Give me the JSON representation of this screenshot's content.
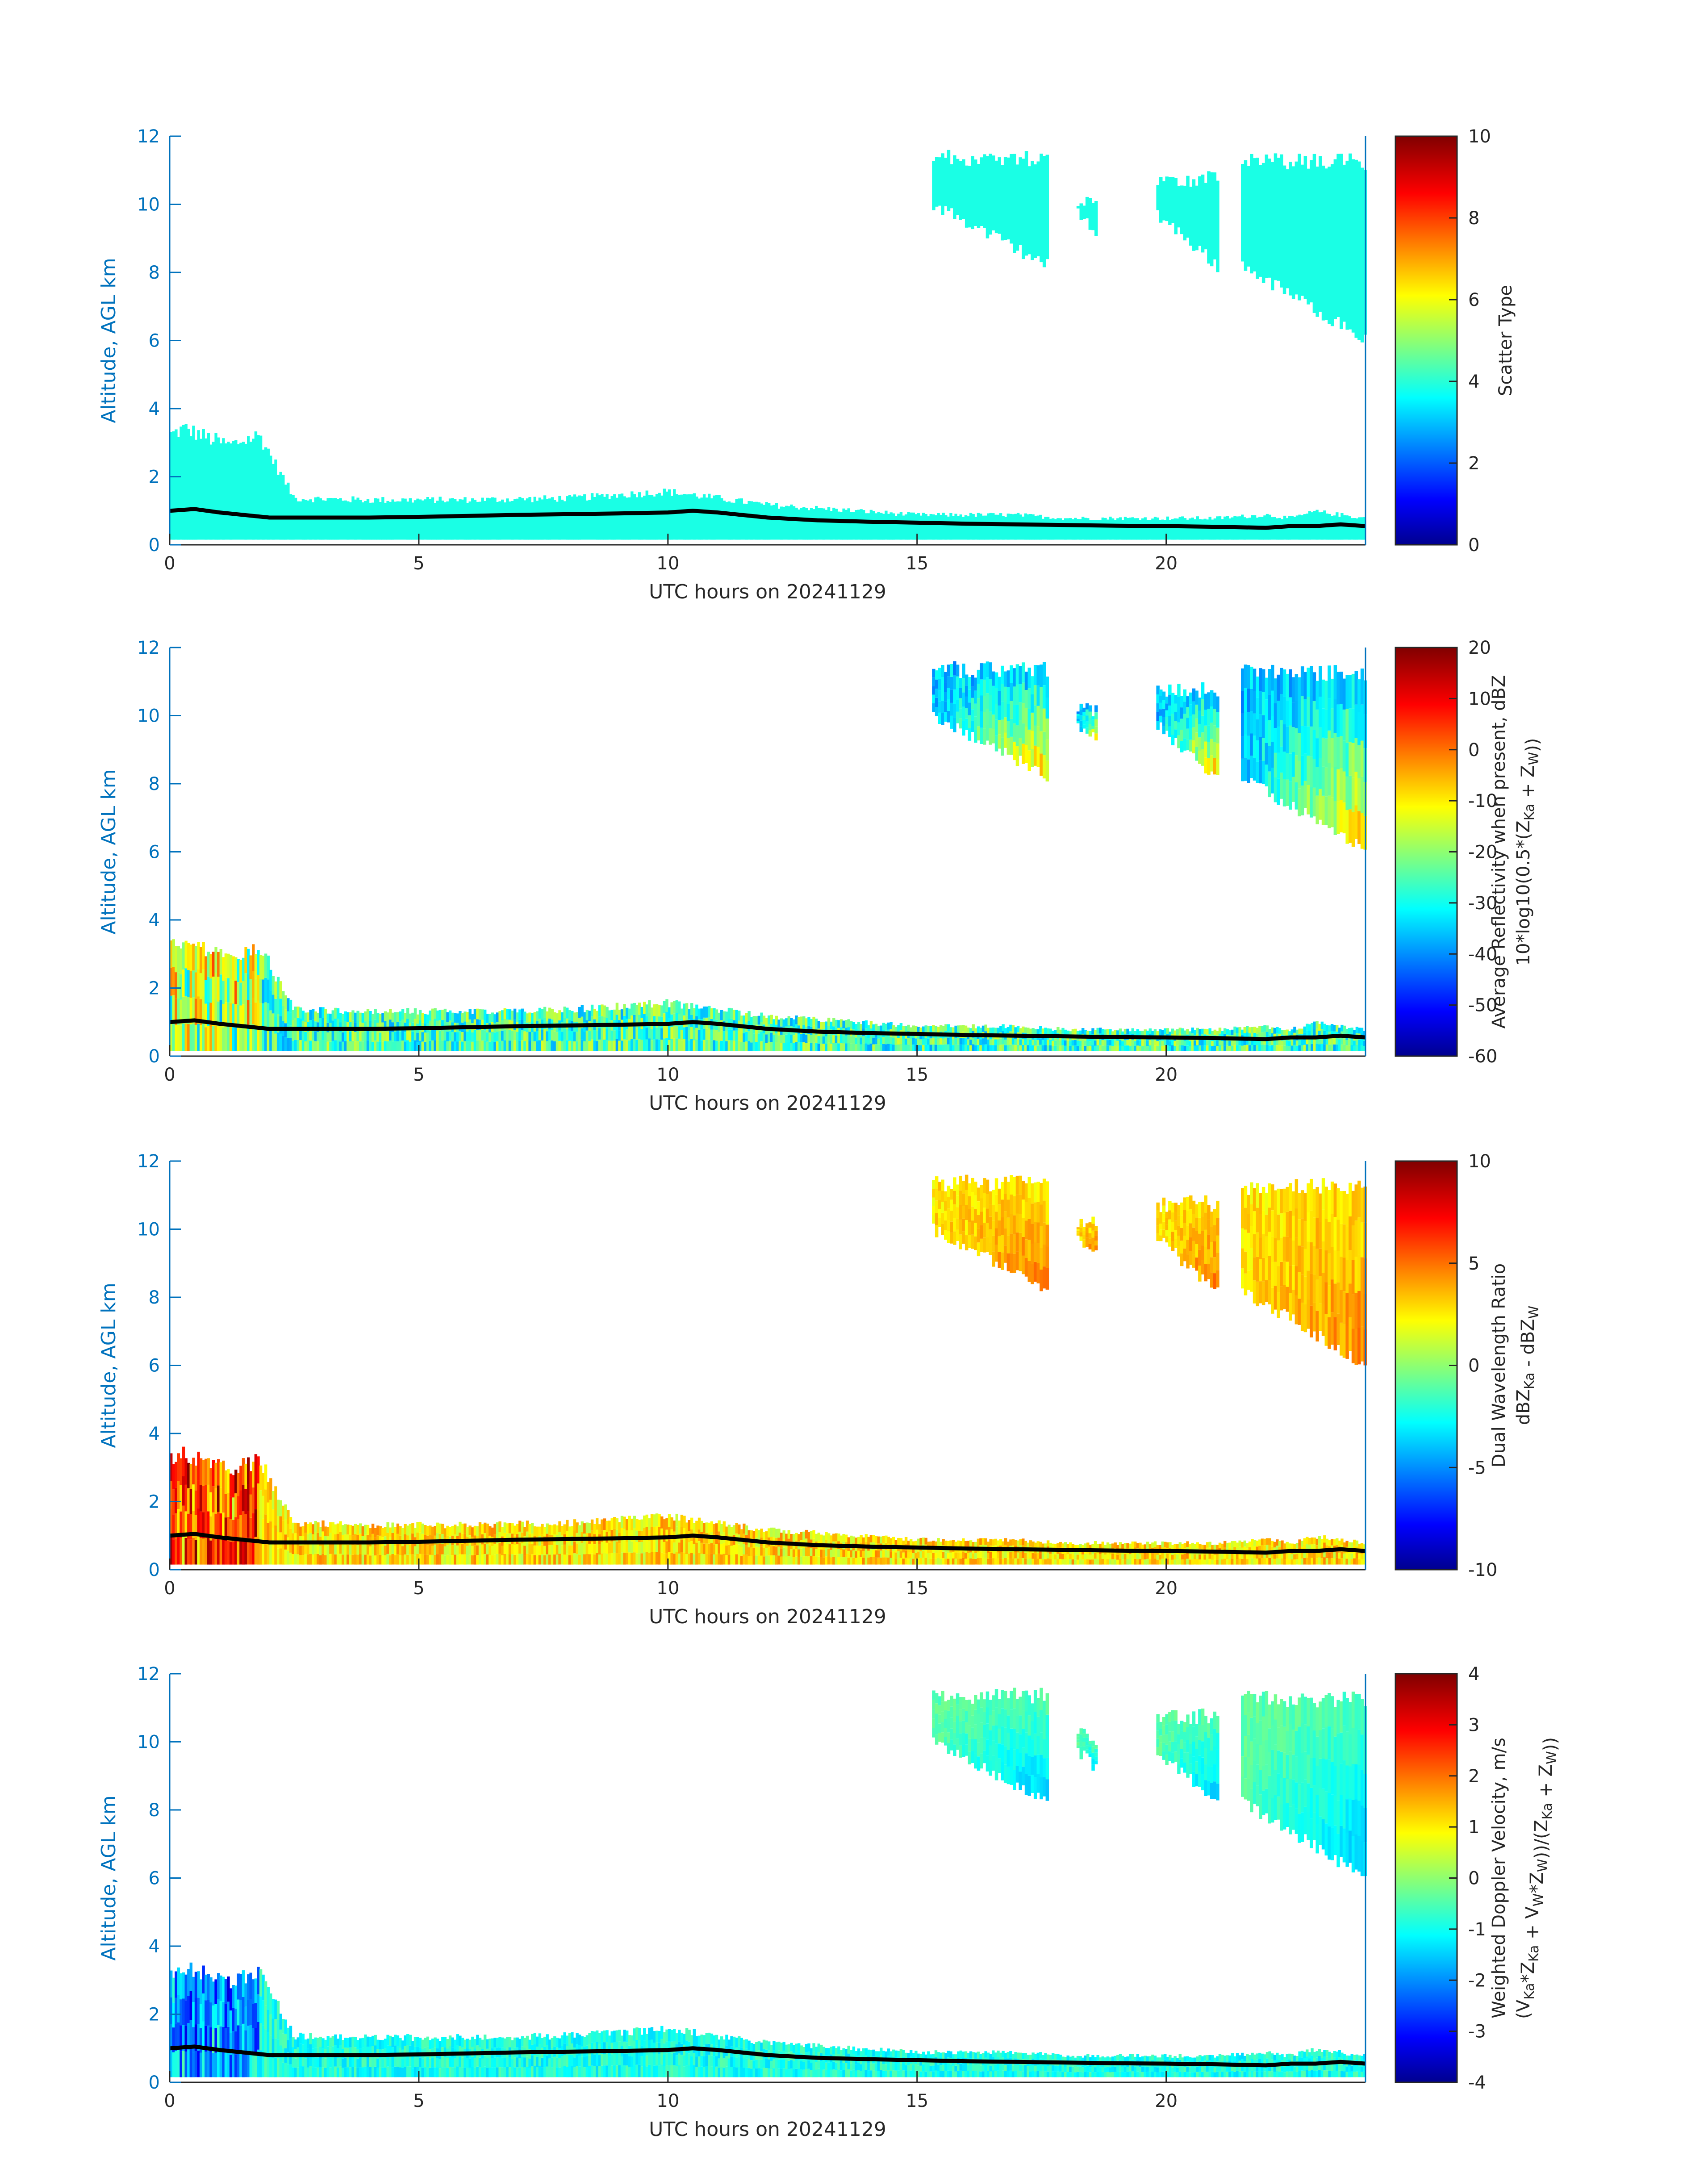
{
  "figure": {
    "x_axis_color": "#262626",
    "y_axis_color": "#0072BD"
  },
  "chart_data": [
    {
      "type": "heatmap",
      "xlabel": "UTC hours on 20241129",
      "ylabel": "Altitude, AGL km",
      "colorbar_label": [
        "Scatter Type"
      ],
      "xlim": [
        0,
        24
      ],
      "ylim": [
        0,
        12
      ],
      "clim": [
        0,
        10
      ],
      "x_ticks": [
        "0",
        "5",
        "10",
        "15",
        "20"
      ],
      "y_ticks": [
        "0",
        "2",
        "4",
        "6",
        "8",
        "10",
        "12"
      ],
      "cbar_ticks": [
        "0",
        "2",
        "4",
        "6",
        "8",
        "10"
      ],
      "fill_value": 4,
      "tint_value": 4,
      "noise": 0,
      "grad_low": 4,
      "grad_high": 4,
      "blocks_extra": []
    },
    {
      "type": "heatmap",
      "xlabel": "UTC hours on 20241129",
      "ylabel": "Altitude, AGL km",
      "colorbar_label": [
        "Average Reflectivity when present, dBZ",
        "10*log10(0.5*(Z_Ka + Z_W))"
      ],
      "xlim": [
        0,
        24
      ],
      "ylim": [
        0,
        12
      ],
      "clim": [
        -60,
        20
      ],
      "x_ticks": [
        "0",
        "5",
        "10",
        "15",
        "20"
      ],
      "y_ticks": [
        "0",
        "2",
        "4",
        "6",
        "8",
        "10",
        "12"
      ],
      "cbar_ticks": [
        "-60",
        "-50",
        "-40",
        "-30",
        "-20",
        "-10",
        "0",
        "10",
        "20"
      ],
      "fill_value": -25,
      "tint_value": -35,
      "noise": 12,
      "grad_low": -35,
      "grad_high": -5
    },
    {
      "type": "heatmap",
      "xlabel": "UTC hours on 20241129",
      "ylabel": "Altitude, AGL km",
      "colorbar_label": [
        "Dual Wavelength Ratio",
        "dBZ_Ka - dBZ_W"
      ],
      "xlim": [
        0,
        24
      ],
      "ylim": [
        0,
        12
      ],
      "clim": [
        -10,
        10
      ],
      "x_ticks": [
        "0",
        "5",
        "10",
        "15",
        "20"
      ],
      "y_ticks": [
        "0",
        "2",
        "4",
        "6",
        "8",
        "10",
        "12"
      ],
      "cbar_ticks": [
        "-10",
        "-5",
        "0",
        "5",
        "10"
      ],
      "fill_value": 3,
      "tint_value": 3.5,
      "noise": 2,
      "grad_low": 3,
      "grad_high": 5
    },
    {
      "type": "heatmap",
      "xlabel": "UTC hours on 20241129",
      "ylabel": "Altitude, AGL km",
      "colorbar_label": [
        "Weighted Doppler Velocity, m/s",
        "(V_Ka*Z_Ka + V_W*Z_W))/(Z_Ka + Z_W))"
      ],
      "xlim": [
        0,
        24
      ],
      "ylim": [
        0,
        12
      ],
      "clim": [
        -4,
        4
      ],
      "x_ticks": [
        "0",
        "5",
        "10",
        "15",
        "20"
      ],
      "y_ticks": [
        "0",
        "2",
        "4",
        "6",
        "8",
        "10",
        "12"
      ],
      "cbar_ticks": [
        "-4",
        "-3",
        "-2",
        "-1",
        "0",
        "1",
        "2",
        "3",
        "4"
      ],
      "fill_value": -0.8,
      "tint_value": -0.6,
      "noise": 0.5,
      "grad_low": -0.3,
      "grad_high": -1.5
    }
  ],
  "cloud_base_line": {
    "x": [
      0,
      0.5,
      1,
      2,
      3,
      4,
      5,
      6,
      7,
      8,
      9,
      10,
      10.5,
      11,
      12,
      13,
      14,
      15,
      16,
      17,
      18,
      19,
      20,
      21,
      22,
      22.5,
      23,
      23.5,
      24
    ],
    "y": [
      1.0,
      1.05,
      0.95,
      0.8,
      0.8,
      0.8,
      0.82,
      0.85,
      0.88,
      0.9,
      0.92,
      0.95,
      1.0,
      0.95,
      0.8,
      0.72,
      0.68,
      0.65,
      0.62,
      0.6,
      0.58,
      0.56,
      0.55,
      0.53,
      0.5,
      0.55,
      0.55,
      0.6,
      0.55
    ]
  },
  "echo_regions": {
    "low_layer_top": {
      "x": [
        0,
        0.3,
        0.8,
        1.2,
        1.8,
        2.5,
        4,
        6,
        8,
        9,
        10,
        11,
        12,
        13,
        14,
        15,
        16,
        17,
        18,
        19,
        20,
        21,
        22,
        22.5,
        23,
        24
      ],
      "y": [
        3.3,
        3.5,
        3.2,
        3.0,
        3.3,
        1.4,
        1.35,
        1.35,
        1.4,
        1.5,
        1.6,
        1.4,
        1.2,
        1.1,
        1.0,
        0.9,
        0.9,
        0.9,
        0.8,
        0.8,
        0.8,
        0.8,
        0.9,
        0.8,
        1.0,
        0.8
      ]
    },
    "low_layer_bottom": 0.15,
    "upper_clouds": [
      {
        "x0": 15.3,
        "x1": 17.6,
        "top": 11.6,
        "bot_start": 9.8,
        "bot_end": 8.0
      },
      {
        "x0": 18.2,
        "x1": 18.6,
        "top": 10.4,
        "bot_start": 9.5,
        "bot_end": 9.0
      },
      {
        "x0": 19.8,
        "x1": 21.0,
        "top": 11.0,
        "bot_start": 9.5,
        "bot_end": 8.0
      },
      {
        "x0": 21.5,
        "x1": 24.0,
        "top": 11.5,
        "bot_start": 8.0,
        "bot_end": 5.8
      }
    ]
  }
}
